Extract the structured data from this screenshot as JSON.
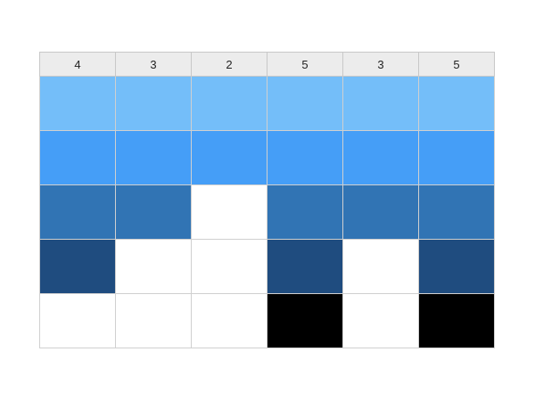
{
  "columns": [
    {
      "label": "4",
      "filled": 4
    },
    {
      "label": "3",
      "filled": 3
    },
    {
      "label": "2",
      "filled": 2
    },
    {
      "label": "5",
      "filled": 5
    },
    {
      "label": "3",
      "filled": 3
    },
    {
      "label": "5",
      "filled": 5
    }
  ],
  "row_colors": [
    "#74bef9",
    "#459ef7",
    "#3174b4",
    "#1f4c7f",
    "#000000"
  ],
  "empty_color": "#ffffff"
}
